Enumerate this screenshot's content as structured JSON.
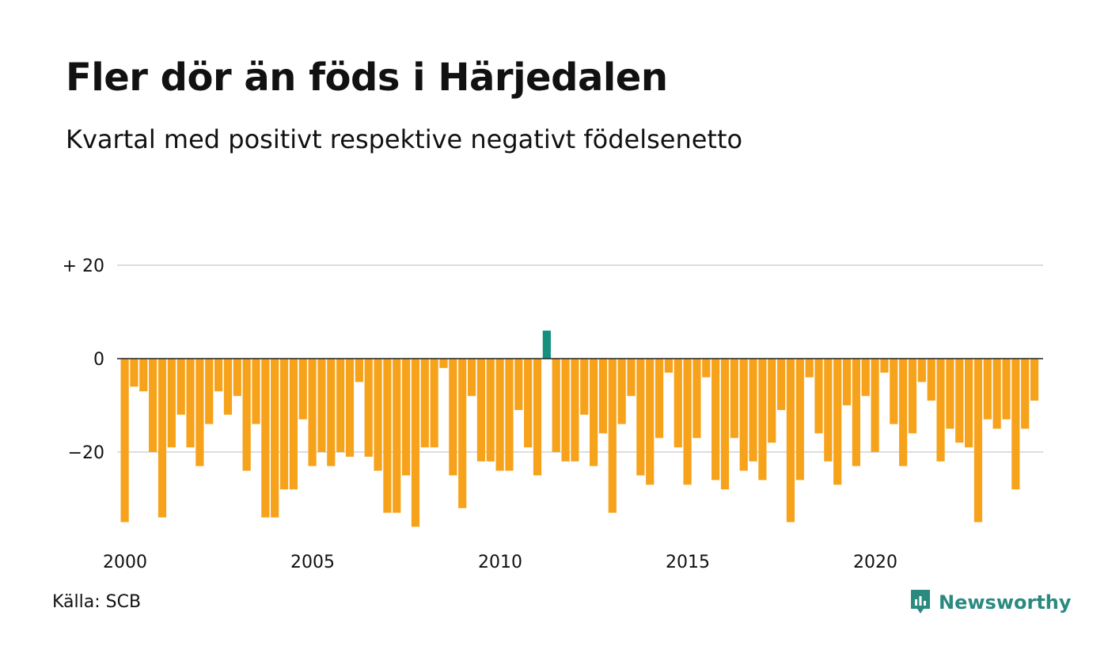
{
  "title": "Fler dör än föds i Härjedalen",
  "subtitle": "Kvartal med positivt respektive negativt födelsenetto",
  "source": "Källa: SCB",
  "brand": "Newsworthy",
  "colors": {
    "negative": "#f7a21b",
    "positive": "#15907e",
    "grid": "#dddddd",
    "zero_line": "#222222",
    "brand": "#2a8a80"
  },
  "chart_data": {
    "type": "bar",
    "title": "Fler dör än föds i Härjedalen",
    "subtitle": "Kvartal med positivt respektive negativt födelsenetto",
    "ylim": [
      -37,
      20
    ],
    "yticks": [
      20,
      0,
      -20
    ],
    "ytick_labels": [
      "+ 20",
      "0",
      "−20"
    ],
    "xtick_years": [
      2000,
      2005,
      2010,
      2015,
      2020
    ],
    "xtick_labels": [
      "2000",
      "2005",
      "2010",
      "2015",
      "2020"
    ],
    "start_year": 2000,
    "periods_per_year": 4,
    "grid": true,
    "values": [
      -35,
      -6,
      -7,
      -20,
      -34,
      -19,
      -12,
      -19,
      -23,
      -14,
      -7,
      -12,
      -8,
      -24,
      -14,
      -34,
      -34,
      -28,
      -28,
      -13,
      -23,
      -20,
      -23,
      -20,
      -21,
      -5,
      -21,
      -24,
      -33,
      -33,
      -25,
      -36,
      -19,
      -19,
      -2,
      -25,
      -32,
      -8,
      -22,
      -22,
      -24,
      -24,
      -11,
      -19,
      -25,
      6,
      -20,
      -22,
      -22,
      -12,
      -23,
      -16,
      -33,
      -14,
      -8,
      -25,
      -27,
      -17,
      -3,
      -19,
      -27,
      -17,
      -4,
      -26,
      -28,
      -17,
      -24,
      -22,
      -26,
      -18,
      -11,
      -35,
      -26,
      -4,
      -16,
      -22,
      -27,
      -10,
      -23,
      -8,
      -20,
      -3,
      -14,
      -23,
      -16,
      -5,
      -9,
      -22,
      -15,
      -18,
      -19,
      -35,
      -13,
      -15,
      -13,
      -28,
      -15,
      -9
    ]
  }
}
